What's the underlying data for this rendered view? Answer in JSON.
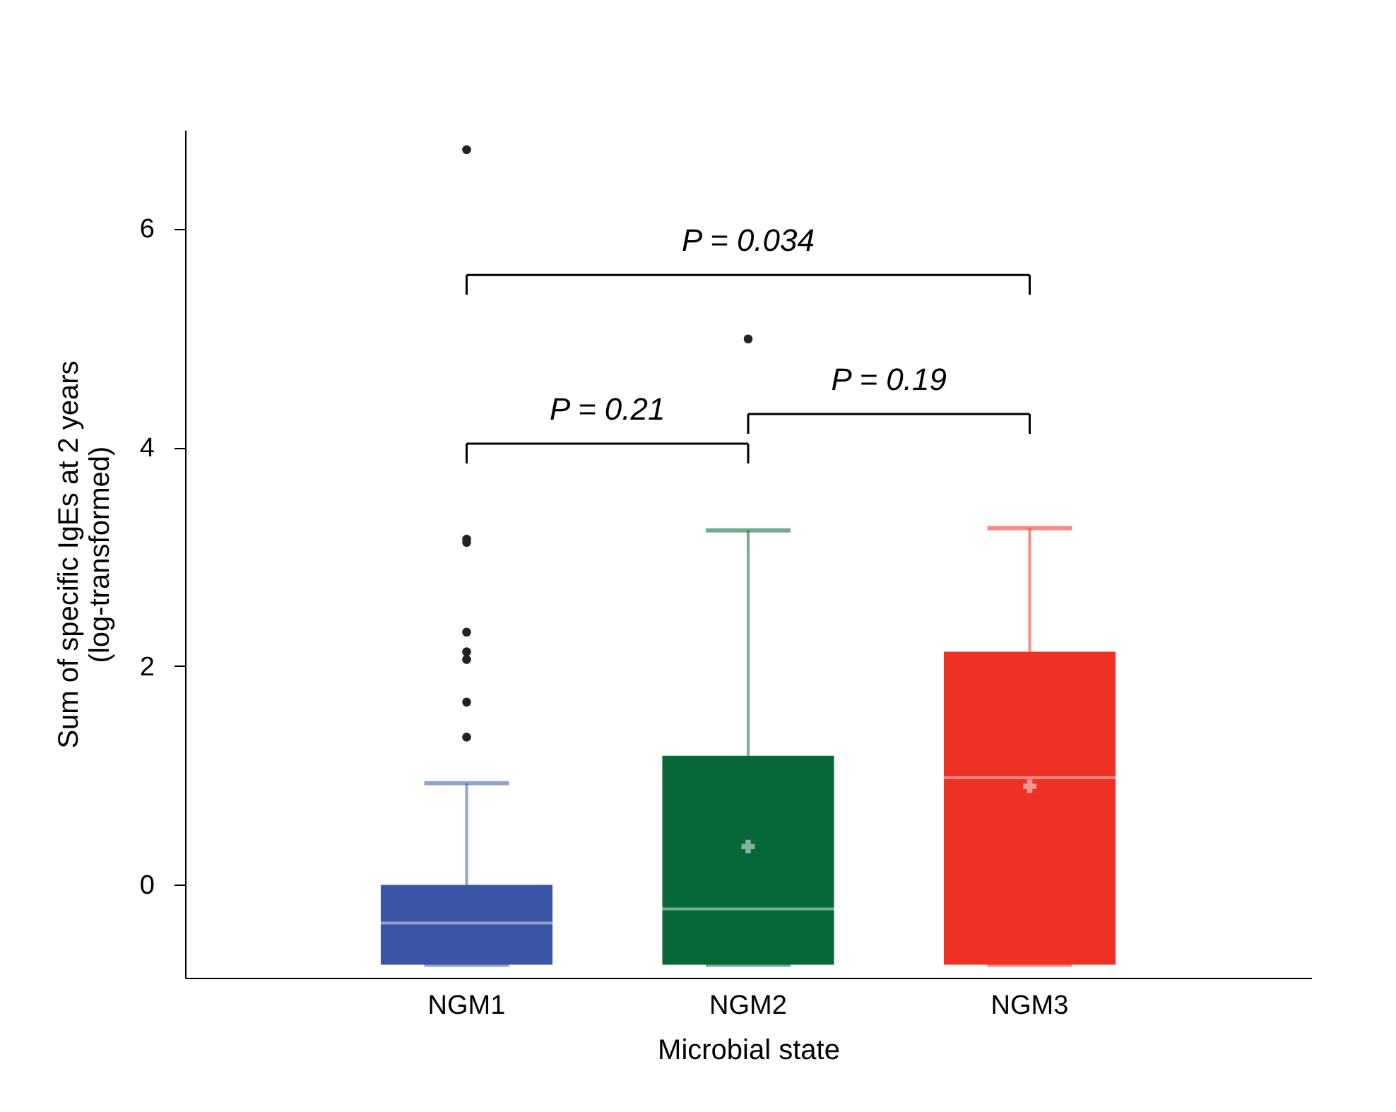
{
  "chart_data": {
    "type": "box",
    "xlabel": "Microbial state",
    "ylabel": "Sum of specific IgEs at 2 years\n(log-transformed)",
    "categories": [
      "NGM1",
      "NGM2",
      "NGM3"
    ],
    "colors": [
      "#3a55a6",
      "#066837",
      "#ee3124"
    ],
    "boxes": [
      {
        "low": -0.73,
        "q1": -0.73,
        "median": -0.35,
        "q3": 0.0,
        "high": 0.93,
        "outliers": [
          6.72,
          3.16,
          3.13,
          2.31,
          2.13,
          2.06,
          1.67,
          1.35
        ]
      },
      {
        "low": -0.73,
        "q1": -0.73,
        "median": -0.22,
        "q3": 1.18,
        "high": 3.24,
        "mean": 0.35,
        "outliers": [
          4.99
        ]
      },
      {
        "low": -0.73,
        "q1": -0.73,
        "median": 0.98,
        "q3": 2.13,
        "high": 3.26,
        "mean": 0.9
      }
    ],
    "ylim": [
      -0.85,
      6.9
    ],
    "yticks": [
      0,
      2,
      4,
      6
    ],
    "grid": false,
    "annotations": [
      "P = 0.034",
      "P = 0.21",
      "P = 0.19"
    ]
  }
}
